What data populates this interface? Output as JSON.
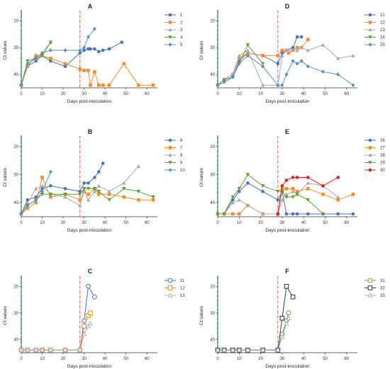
{
  "colors": {
    "blue": "#4472c4",
    "orange": "#f28e2b",
    "gray": "#aaaaaa",
    "green": "#5fa136",
    "steel": "#5b8fbe",
    "red": "#e02020",
    "navy": "#2f3f5f",
    "inoculation_line": "#2e9e5a",
    "day28_line": "#d9302a"
  },
  "chart_data": [
    {
      "panel": "A",
      "type": "line",
      "title": "A",
      "xlabel": "Days post-inoculation",
      "ylabel": "Ct values",
      "xlim": [
        0,
        65
      ],
      "ylim": [
        45,
        17
      ],
      "y_inverted": true,
      "xticks": [
        0,
        10,
        20,
        30,
        40,
        50,
        60
      ],
      "yticks": [
        20,
        30,
        40
      ],
      "vlines": [
        0,
        28
      ],
      "legend": "right",
      "series": [
        {
          "name": "1",
          "color": "blue",
          "marker": "circle",
          "x": [
            0,
            3,
            7,
            10,
            14,
            21,
            28,
            30,
            32,
            33,
            35,
            37,
            39,
            42,
            48
          ],
          "y": [
            44,
            37,
            35,
            33,
            35,
            37,
            32,
            31,
            30.5,
            30.5,
            30.5,
            31.5,
            31,
            30.5,
            28
          ]
        },
        {
          "name": "2",
          "color": "orange",
          "marker": "square",
          "x": [
            0,
            3,
            7,
            10,
            14,
            21,
            28,
            30,
            32,
            33,
            35,
            37,
            39,
            42,
            49,
            56,
            63
          ],
          "y": [
            44,
            37,
            33,
            33,
            34,
            36,
            38,
            38.5,
            38.5,
            44,
            39,
            44,
            44,
            44,
            36,
            44,
            44
          ]
        },
        {
          "name": "3",
          "color": "gray",
          "marker": "triangle-up",
          "x": [
            0,
            3,
            7,
            10,
            14
          ],
          "y": [
            44,
            36,
            34,
            32,
            28
          ]
        },
        {
          "name": "4",
          "color": "green",
          "marker": "triangle-down",
          "x": [
            0,
            3,
            7,
            10,
            14
          ],
          "y": [
            44,
            35,
            34,
            33,
            28
          ]
        },
        {
          "name": "5",
          "color": "steel",
          "marker": "diamond",
          "x": [
            0,
            3,
            7,
            10,
            14,
            21,
            28,
            30,
            32,
            35
          ],
          "y": [
            44,
            36,
            34,
            32,
            31,
            31,
            31,
            30,
            26,
            23
          ]
        }
      ]
    },
    {
      "panel": "D",
      "type": "line",
      "title": "D",
      "xlabel": "Days post-inoculation",
      "ylabel": "Ct values",
      "xlim": [
        0,
        65
      ],
      "ylim": [
        45,
        17
      ],
      "y_inverted": true,
      "xticks": [
        0,
        10,
        20,
        30,
        40,
        50,
        60
      ],
      "yticks": [
        20,
        30,
        40
      ],
      "vlines": [
        0,
        28
      ],
      "legend": "right",
      "series": [
        {
          "name": "21",
          "color": "blue",
          "marker": "circle",
          "x": [
            0,
            3,
            7,
            10,
            14,
            21,
            28,
            30,
            32,
            35,
            37,
            39
          ],
          "y": [
            44,
            42,
            41,
            35,
            32,
            33,
            36,
            32,
            31,
            30,
            26,
            26
          ]
        },
        {
          "name": "22",
          "color": "orange",
          "marker": "square",
          "x": [
            0,
            3,
            7,
            10,
            14,
            21,
            28,
            30,
            32,
            33,
            35,
            37,
            39,
            42
          ],
          "y": [
            44,
            42,
            40,
            34,
            32,
            33,
            33,
            31,
            31,
            32,
            31,
            30,
            30,
            27
          ]
        },
        {
          "name": "23",
          "color": "gray",
          "marker": "triangle-up",
          "x": [
            0,
            3,
            7,
            10,
            14,
            21,
            28,
            30,
            32,
            35,
            37,
            39,
            42,
            49,
            56,
            63
          ],
          "y": [
            44,
            42,
            40,
            33,
            31,
            44,
            44,
            33,
            31,
            31,
            31,
            30,
            31,
            29,
            34,
            33
          ]
        },
        {
          "name": "24",
          "color": "green",
          "marker": "triangle-down",
          "x": [
            0,
            3,
            7,
            10,
            14,
            21
          ],
          "y": [
            44,
            43,
            41,
            36,
            29,
            36
          ]
        },
        {
          "name": "25",
          "color": "steel",
          "marker": "diamond",
          "x": [
            0,
            3,
            7,
            10,
            14,
            21,
            28,
            30,
            32,
            35,
            37,
            39,
            42,
            49,
            56,
            63
          ],
          "y": [
            44,
            42,
            41,
            36,
            33,
            37,
            44,
            44,
            40,
            35,
            36,
            35,
            37,
            39,
            40,
            44
          ]
        }
      ]
    },
    {
      "panel": "B",
      "type": "line",
      "title": "B",
      "xlabel": "Days post-inoculation",
      "ylabel": "Ct values",
      "xlim": [
        0,
        65
      ],
      "ylim": [
        45,
        17
      ],
      "y_inverted": true,
      "xticks": [
        0,
        10,
        20,
        30,
        40,
        50,
        60
      ],
      "yticks": [
        20,
        30,
        40
      ],
      "vlines": [
        0,
        28
      ],
      "legend": "right",
      "series": [
        {
          "name": "6",
          "color": "blue",
          "marker": "circle",
          "x": [
            0,
            3,
            7,
            10,
            14,
            21,
            28,
            30,
            32,
            35,
            37,
            39
          ],
          "y": [
            44,
            39,
            38,
            35,
            34,
            35,
            36,
            33,
            33,
            31,
            29,
            26
          ]
        },
        {
          "name": "7",
          "color": "orange",
          "marker": "square",
          "x": [
            0,
            3,
            7,
            10,
            14,
            21,
            28,
            30,
            32,
            35,
            37,
            42,
            49,
            56,
            63
          ],
          "y": [
            44,
            42,
            40,
            31,
            38,
            37,
            39,
            36,
            37,
            35,
            37,
            37,
            38,
            39,
            39
          ]
        },
        {
          "name": "8",
          "color": "gray",
          "marker": "triangle-up",
          "x": [
            0,
            3,
            7,
            10,
            14,
            21,
            28,
            30,
            32,
            35,
            37,
            42,
            49,
            56
          ],
          "y": [
            44,
            40,
            35,
            34,
            37,
            38,
            41,
            36,
            39,
            36,
            34,
            36,
            33,
            27
          ]
        },
        {
          "name": "9",
          "color": "green",
          "marker": "triangle-down",
          "x": [
            0,
            3,
            7,
            10,
            14,
            21,
            28,
            30,
            32,
            35,
            37,
            42,
            49,
            56,
            63
          ],
          "y": [
            44,
            41,
            39,
            37,
            37,
            37,
            37,
            35,
            35,
            35,
            36,
            39,
            35,
            36,
            38
          ]
        },
        {
          "name": "10",
          "color": "steel",
          "marker": "diamond",
          "x": [
            0,
            3,
            7,
            10,
            14
          ],
          "y": [
            44,
            41,
            39,
            36,
            29
          ]
        }
      ]
    },
    {
      "panel": "E",
      "type": "line",
      "title": "E",
      "xlabel": "Days post-inoculation",
      "ylabel": "Ct values",
      "xlim": [
        0,
        65
      ],
      "ylim": [
        45,
        17
      ],
      "y_inverted": true,
      "xticks": [
        0,
        10,
        20,
        30,
        40,
        50,
        60
      ],
      "yticks": [
        20,
        30,
        40
      ],
      "vlines": [
        0,
        28
      ],
      "legend": "right",
      "series": [
        {
          "name": "26",
          "color": "blue",
          "marker": "circle",
          "x": [
            0,
            3,
            7,
            10,
            14,
            21,
            28,
            30,
            32,
            35,
            37,
            42,
            49,
            56,
            63
          ],
          "y": [
            44,
            44,
            39,
            36,
            33,
            36,
            39,
            36,
            44,
            44,
            44,
            44,
            44,
            44,
            44
          ]
        },
        {
          "name": "27",
          "color": "orange",
          "marker": "square",
          "x": [
            0,
            3,
            7,
            10,
            14,
            21,
            28,
            30,
            32,
            35,
            37,
            42,
            49,
            56,
            63
          ],
          "y": [
            44,
            44,
            44,
            44,
            41,
            44,
            44,
            35,
            35,
            35,
            36,
            35,
            37,
            39,
            37
          ]
        },
        {
          "name": "28",
          "color": "gray",
          "marker": "triangle-up",
          "x": [
            0,
            3,
            7,
            10,
            14,
            21,
            28,
            30,
            32,
            35,
            37,
            42,
            49,
            56
          ],
          "y": [
            44,
            44,
            40,
            39,
            41,
            44,
            44,
            39,
            37,
            36,
            37,
            33,
            34,
            38
          ]
        },
        {
          "name": "29",
          "color": "green",
          "marker": "triangle-down",
          "x": [
            0,
            3,
            7,
            10,
            14,
            21,
            28,
            30,
            32,
            35,
            37,
            42,
            49
          ],
          "y": [
            44,
            44,
            38,
            35,
            30,
            34,
            36,
            36,
            38,
            38,
            37,
            39,
            44
          ]
        },
        {
          "name": "30",
          "color": "red",
          "marker": "circle",
          "x": [
            28,
            30,
            32,
            35,
            37,
            42,
            49,
            56
          ],
          "y": [
            44,
            34,
            32,
            31,
            31,
            31,
            34,
            31
          ]
        }
      ]
    },
    {
      "panel": "C",
      "type": "line",
      "title": "C",
      "xlabel": "Days post-inoculation",
      "ylabel": "Ct values",
      "xlim": [
        0,
        65
      ],
      "ylim": [
        45,
        17
      ],
      "y_inverted": true,
      "xticks": [
        0,
        10,
        20,
        30,
        40,
        50,
        60
      ],
      "yticks": [
        20,
        30,
        40
      ],
      "vlines": [
        0,
        28
      ],
      "legend": "right",
      "series": [
        {
          "name": "11",
          "color": "blue",
          "marker": "open-circle",
          "x": [
            0,
            3,
            7,
            10,
            14,
            21,
            28,
            30,
            32,
            35
          ],
          "y": [
            44,
            44,
            44,
            44,
            44,
            44,
            44,
            33,
            20,
            24
          ]
        },
        {
          "name": "12",
          "color": "orange",
          "marker": "open-square",
          "x": [
            0,
            3,
            7,
            10,
            14,
            21,
            28,
            30,
            32,
            33
          ],
          "y": [
            44,
            44,
            44,
            44,
            44,
            44,
            44,
            35,
            31,
            30
          ]
        },
        {
          "name": "13",
          "color": "gray",
          "marker": "open-triangle",
          "x": [
            0,
            3,
            7,
            10,
            14,
            21,
            28,
            30,
            32,
            33
          ],
          "y": [
            44,
            44,
            44,
            44,
            44,
            44,
            44,
            38,
            35,
            34
          ]
        }
      ]
    },
    {
      "panel": "F",
      "type": "line",
      "title": "F",
      "xlabel": "Days post-inoculation",
      "ylabel": "Ct values",
      "xlim": [
        0,
        65
      ],
      "ylim": [
        45,
        17
      ],
      "y_inverted": true,
      "xticks": [
        0,
        10,
        20,
        30,
        40,
        50,
        60
      ],
      "yticks": [
        20,
        30,
        40
      ],
      "vlines": [
        0,
        28
      ],
      "legend": "right",
      "series": [
        {
          "name": "31",
          "color": "green",
          "marker": "open-circle",
          "x": [
            0,
            3,
            7,
            10,
            14,
            21,
            28,
            30,
            32,
            33
          ],
          "y": [
            44,
            44,
            44,
            44,
            44,
            44,
            44,
            38,
            33,
            30
          ]
        },
        {
          "name": "32",
          "color": "navy",
          "marker": "open-square",
          "x": [
            0,
            3,
            7,
            10,
            14,
            21,
            28,
            30,
            32,
            35
          ],
          "y": [
            44,
            44,
            44,
            44,
            44,
            44,
            44,
            32,
            20,
            24
          ]
        },
        {
          "name": "33",
          "color": "gray",
          "marker": "open-triangle",
          "x": [
            0,
            3,
            7,
            10,
            14,
            21,
            28,
            30,
            32,
            33
          ],
          "y": [
            44,
            44,
            44,
            44,
            44,
            44,
            44,
            39,
            34,
            32
          ]
        }
      ]
    }
  ]
}
